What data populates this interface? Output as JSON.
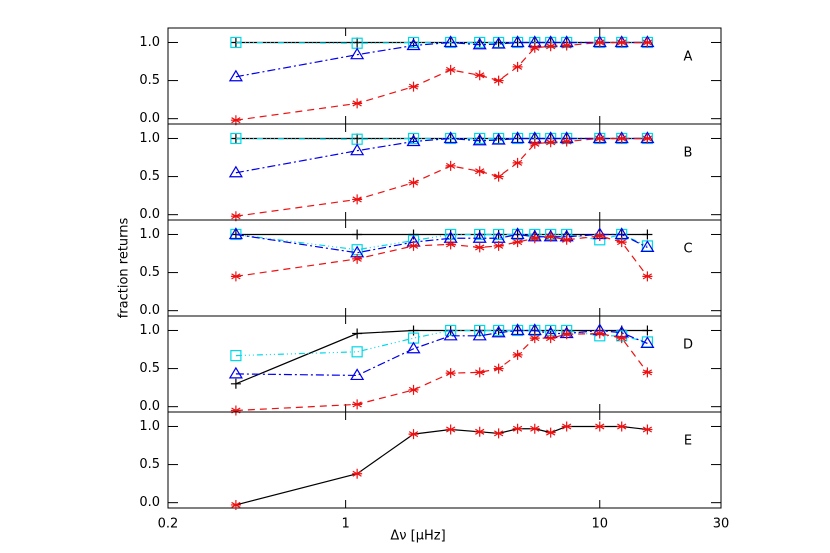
{
  "chart_data": {
    "type": "line",
    "xscale": "log",
    "xlabel": "Δν [μHz]",
    "ylabel": "fraction returns",
    "x": [
      0.37,
      1.11,
      1.85,
      2.59,
      3.37,
      4.0,
      4.75,
      5.55,
      6.41,
      7.41,
      10,
      12.2,
      15.4
    ],
    "xlim": [
      0.2,
      30
    ],
    "xticks": [
      0.2,
      1,
      10,
      30
    ],
    "ylim": [
      -0.07,
      1.19
    ],
    "yticks": [
      {
        "value": 0,
        "label": "0.0"
      },
      {
        "value": 0.5,
        "label": "0.5"
      },
      {
        "value": 1,
        "label": "1.0"
      }
    ],
    "panels": [
      {
        "label": "A",
        "series": [
          {
            "color": "#000000",
            "marker": "plus",
            "dash": "none",
            "values": [
              1,
              1,
              1,
              1,
              1,
              1,
              1,
              1,
              1,
              1,
              1,
              1,
              1
            ]
          },
          {
            "color": "#00d8e8",
            "marker": "square",
            "dash": "6 3 1 3 1 3 1 3",
            "values": [
              1,
              0.99,
              1,
              1,
              1,
              1,
              1,
              1,
              1,
              1,
              1,
              1,
              1
            ]
          },
          {
            "color": "#0000ee",
            "marker": "triangle",
            "dash": "8 3 2 3",
            "values": [
              0.55,
              0.84,
              0.96,
              1,
              0.97,
              0.98,
              1,
              1,
              1,
              1,
              1,
              1,
              1
            ]
          },
          {
            "color": "#ee1111",
            "marker": "asterisk",
            "dash": "7 5",
            "values": [
              -0.02,
              0.2,
              0.42,
              0.64,
              0.57,
              0.5,
              0.68,
              0.93,
              0.95,
              0.96,
              1,
              1,
              1
            ]
          }
        ]
      },
      {
        "label": "B",
        "series": [
          {
            "color": "#000000",
            "marker": "plus",
            "dash": "none",
            "values": [
              1,
              1,
              1,
              1,
              1,
              1,
              1,
              1,
              1,
              1,
              1,
              1,
              1
            ]
          },
          {
            "color": "#00d8e8",
            "marker": "square",
            "dash": "6 3 1 3 1 3 1 3",
            "values": [
              1,
              0.99,
              1,
              1,
              1,
              1,
              1,
              1,
              1,
              1,
              1,
              1,
              1
            ]
          },
          {
            "color": "#0000ee",
            "marker": "triangle",
            "dash": "8 3 2 3",
            "values": [
              0.55,
              0.84,
              0.96,
              1,
              0.97,
              0.98,
              1,
              1,
              1,
              1,
              1,
              1,
              1
            ]
          },
          {
            "color": "#ee1111",
            "marker": "asterisk",
            "dash": "7 5",
            "values": [
              -0.02,
              0.2,
              0.42,
              0.64,
              0.57,
              0.5,
              0.68,
              0.93,
              0.95,
              0.96,
              1,
              1,
              1
            ]
          }
        ]
      },
      {
        "label": "C",
        "series": [
          {
            "color": "#000000",
            "marker": "plus",
            "dash": "none",
            "values": [
              1,
              1,
              1,
              1,
              1,
              1,
              1,
              1,
              1,
              1,
              1,
              1,
              1
            ]
          },
          {
            "color": "#00d8e8",
            "marker": "square",
            "dash": "6 3 1 3 1 3 1 3",
            "values": [
              1,
              0.8,
              0.92,
              1,
              1,
              1,
              1,
              1,
              1,
              1,
              0.93,
              1,
              0.85
            ]
          },
          {
            "color": "#0000ee",
            "marker": "triangle",
            "dash": "8 3 2 3",
            "values": [
              1,
              0.76,
              0.9,
              0.95,
              0.95,
              0.95,
              1,
              0.97,
              0.97,
              0.97,
              1,
              1,
              0.83
            ]
          },
          {
            "color": "#ee1111",
            "marker": "asterisk",
            "dash": "7 5",
            "values": [
              0.45,
              0.68,
              0.85,
              0.87,
              0.83,
              0.85,
              0.9,
              0.95,
              0.97,
              0.93,
              0.98,
              0.9,
              0.45
            ]
          }
        ]
      },
      {
        "label": "D",
        "series": [
          {
            "color": "#000000",
            "marker": "plus",
            "dash": "none",
            "values": [
              0.3,
              0.96,
              1,
              1,
              1,
              1,
              1,
              1,
              1,
              1,
              1,
              1,
              1
            ]
          },
          {
            "color": "#00d8e8",
            "marker": "square",
            "dash": "6 3 1 3 1 3 1 3",
            "values": [
              0.67,
              0.72,
              0.9,
              1,
              1,
              1,
              1,
              1,
              1,
              1,
              0.93,
              0.93,
              0.85
            ]
          },
          {
            "color": "#0000ee",
            "marker": "triangle",
            "dash": "8 3 2 3",
            "values": [
              0.43,
              0.41,
              0.76,
              0.93,
              0.93,
              0.97,
              1,
              1,
              0.96,
              0.96,
              1,
              0.97,
              0.83
            ]
          },
          {
            "color": "#ee1111",
            "marker": "asterisk",
            "dash": "7 5",
            "values": [
              -0.05,
              0.03,
              0.22,
              0.44,
              0.45,
              0.5,
              0.68,
              0.9,
              0.9,
              0.95,
              0.96,
              0.9,
              0.45
            ]
          }
        ]
      },
      {
        "label": "E",
        "series": [
          {
            "color": "#000000",
            "marker": "asterisk",
            "marker_color": "#ee1111",
            "dash": "none",
            "values": [
              -0.03,
              0.38,
              0.9,
              0.96,
              0.93,
              0.91,
              0.97,
              0.97,
              0.92,
              1,
              1,
              1,
              0.96
            ]
          }
        ]
      }
    ]
  }
}
